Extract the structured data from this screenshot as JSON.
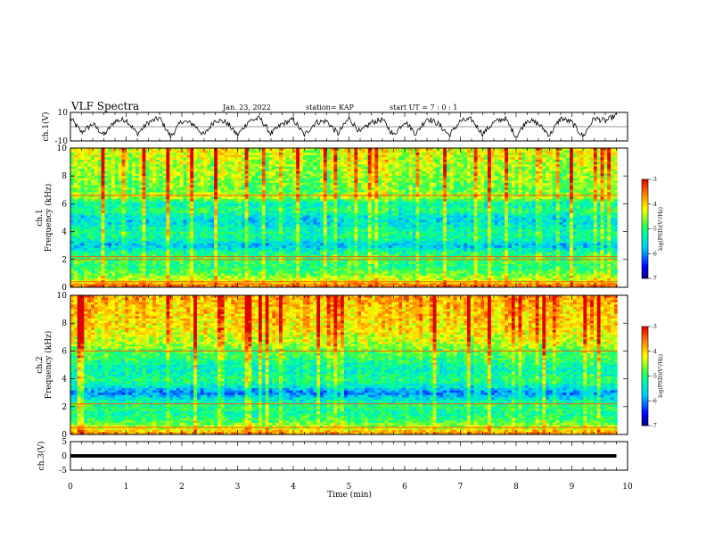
{
  "header": {
    "title": "VLF Spectra",
    "date": "Jan. 23, 2022",
    "station": "station= KAP",
    "start": "start  UT =   7 : 0  : 1"
  },
  "chart_data": [
    {
      "type": "line",
      "id": "ch1_waveform",
      "ylabel": "ch.1(V)",
      "ylim": [
        -10,
        10
      ],
      "y_ticks": [
        "10",
        "-10"
      ],
      "xlim": [
        0,
        10
      ],
      "x": [
        0.0,
        0.2,
        0.4,
        0.6,
        0.8,
        1.0,
        1.2,
        1.4,
        1.6,
        1.8,
        2.0,
        2.2,
        2.4,
        2.6,
        2.8,
        3.0,
        3.2,
        3.4,
        3.6,
        3.8,
        4.0,
        4.2,
        4.4,
        4.6,
        4.8,
        5.0,
        5.2,
        5.4,
        5.6,
        5.8,
        6.0,
        6.2,
        6.4,
        6.6,
        6.8,
        7.0,
        7.2,
        7.4,
        7.6,
        7.8,
        8.0,
        8.2,
        8.4,
        8.6,
        8.8,
        9.0,
        9.2,
        9.4,
        9.6,
        9.8
      ],
      "y": [
        6,
        -4,
        2,
        -6,
        4,
        5,
        -5,
        3,
        6,
        -7,
        4,
        2,
        -6,
        5,
        3,
        -6,
        4,
        6,
        -5,
        2,
        5,
        -6,
        3,
        4,
        -5,
        6,
        -4,
        3,
        5,
        -6,
        4,
        -5,
        6,
        2,
        -6,
        4,
        5,
        -5,
        3,
        6,
        -7,
        5,
        2,
        -6,
        6,
        3,
        -7,
        6,
        4,
        8
      ],
      "color": "#000000"
    },
    {
      "type": "heatmap",
      "id": "ch1_spectrogram",
      "ylabel": "ch.1\nFrequency (kHz)",
      "xlim": [
        0,
        10
      ],
      "ylim": [
        0,
        10
      ],
      "y_ticks": [
        0,
        2,
        4,
        6,
        8,
        10
      ],
      "colorbar": {
        "label": "log(PSD)(V²/Hz)",
        "range": [
          -7,
          -3
        ],
        "ticks": [
          -7,
          -6,
          -5,
          -4,
          -3
        ]
      },
      "freq_profile_kHz": [
        0,
        0.5,
        1.0,
        1.5,
        2.0,
        2.5,
        3.0,
        3.5,
        4.0,
        4.5,
        5.0,
        5.5,
        6.0,
        6.5,
        7.0,
        7.5,
        8.0,
        8.5,
        9.0,
        9.5,
        10.0
      ],
      "mean_logpsd": [
        -3.6,
        -4.4,
        -4.9,
        -5.2,
        -5.0,
        -5.3,
        -6.0,
        -5.4,
        -5.3,
        -5.7,
        -5.8,
        -5.2,
        -5.6,
        -4.6,
        -5.0,
        -4.9,
        -4.8,
        -4.8,
        -4.7,
        -4.6,
        -4.5
      ],
      "lines_kHz": [
        6.6,
        2.2,
        2.0,
        0.4,
        0.2
      ]
    },
    {
      "type": "heatmap",
      "id": "ch2_spectrogram",
      "ylabel": "ch.2\nFrequency (kHz)",
      "xlim": [
        0,
        10
      ],
      "ylim": [
        0,
        10
      ],
      "y_ticks": [
        0,
        2,
        4,
        6,
        8,
        10
      ],
      "colorbar": {
        "label": "log(PSD)(V²/Hz)",
        "range": [
          -7,
          -3
        ],
        "ticks": [
          -7,
          -6,
          -5,
          -4,
          -3
        ]
      },
      "freq_profile_kHz": [
        0,
        0.5,
        1.0,
        1.5,
        2.0,
        2.5,
        3.0,
        3.5,
        4.0,
        4.5,
        5.0,
        5.5,
        6.0,
        6.5,
        7.0,
        7.5,
        8.0,
        8.5,
        9.0,
        9.5,
        10.0
      ],
      "mean_logpsd": [
        -3.7,
        -4.5,
        -5.0,
        -5.3,
        -5.1,
        -5.6,
        -6.2,
        -5.5,
        -5.2,
        -5.5,
        -5.4,
        -5.1,
        -5.0,
        -4.6,
        -4.5,
        -4.3,
        -4.3,
        -4.2,
        -4.2,
        -4.1,
        -4.0
      ],
      "lines_kHz": [
        6.0,
        2.2,
        0.5
      ]
    },
    {
      "type": "line",
      "id": "ch3_waveform",
      "ylabel": "ch.3(V)",
      "ylim": [
        -5,
        5
      ],
      "y_ticks": [
        "5",
        "0",
        "-5"
      ],
      "xlim": [
        0,
        10
      ],
      "x": [
        0,
        9.8
      ],
      "y": [
        0,
        0
      ],
      "color": "#000000"
    }
  ],
  "x_axis": {
    "label": "Time (min)",
    "ticks": [
      "0",
      "1",
      "2",
      "3",
      "4",
      "5",
      "6",
      "7",
      "8",
      "9",
      "10"
    ]
  }
}
